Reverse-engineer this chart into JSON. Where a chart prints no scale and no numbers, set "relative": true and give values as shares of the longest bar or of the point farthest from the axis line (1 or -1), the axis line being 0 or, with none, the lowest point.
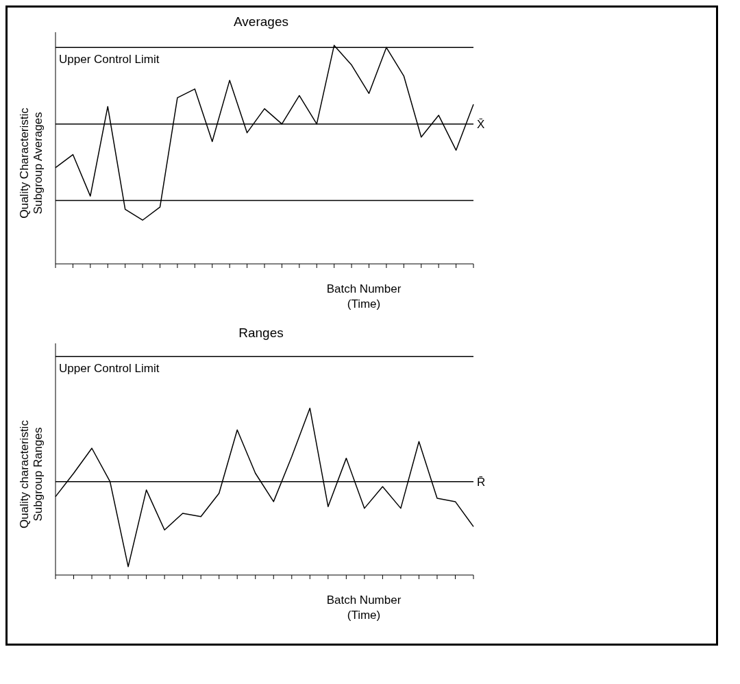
{
  "chart_data": [
    {
      "type": "line",
      "title": "Averages",
      "xlabel": "Batch Number\n(Time)",
      "ylabel": "Quality Characteristic\nSubgroup Averages",
      "relative": true,
      "marker": "none",
      "categories": [
        null,
        null,
        null,
        null,
        null,
        null,
        null,
        null,
        null,
        null,
        null,
        null,
        null,
        null,
        null,
        null,
        null,
        null,
        null,
        null,
        null,
        null,
        null,
        null,
        null
      ],
      "series": [
        {
          "color": "#000000",
          "values": [
            0.44,
            0.5,
            0.31,
            0.72,
            0.25,
            0.2,
            0.26,
            0.76,
            0.8,
            0.56,
            0.84,
            0.6,
            0.71,
            0.64,
            0.77,
            0.64,
            1.0,
            0.91,
            0.78,
            0.99,
            0.86,
            0.58,
            0.68,
            0.52,
            0.73
          ]
        }
      ],
      "ref_lines": [
        {
          "axis": "y",
          "value": 0.99,
          "label": "Upper Control Limit",
          "color": "#000000"
        },
        {
          "axis": "y",
          "value": 0.64,
          "label": "X̄",
          "color": "#000000"
        },
        {
          "axis": "y",
          "value": 0.29,
          "color": "#000000"
        }
      ]
    },
    {
      "type": "line",
      "title": "Ranges",
      "xlabel": "Batch Number\n(Time)",
      "ylabel": "Quality characteristic\nSubgroup Ranges",
      "relative": true,
      "marker": "none",
      "categories": [
        null,
        null,
        null,
        null,
        null,
        null,
        null,
        null,
        null,
        null,
        null,
        null,
        null,
        null,
        null,
        null,
        null,
        null,
        null,
        null,
        null,
        null,
        null,
        null
      ],
      "series": [
        {
          "color": "#000000",
          "values": [
            0.47,
            0.61,
            0.76,
            0.56,
            0.05,
            0.51,
            0.27,
            0.37,
            0.35,
            0.49,
            0.87,
            0.61,
            0.44,
            0.71,
            1.0,
            0.41,
            0.7,
            0.4,
            0.53,
            0.4,
            0.8,
            0.46,
            0.44,
            0.29
          ]
        }
      ],
      "ref_lines": [
        {
          "axis": "y",
          "value": 1.31,
          "label": "Upper Control Limit",
          "color": "#000000"
        },
        {
          "axis": "y",
          "value": 0.56,
          "label": "R̄",
          "color": "#000000"
        }
      ]
    }
  ]
}
